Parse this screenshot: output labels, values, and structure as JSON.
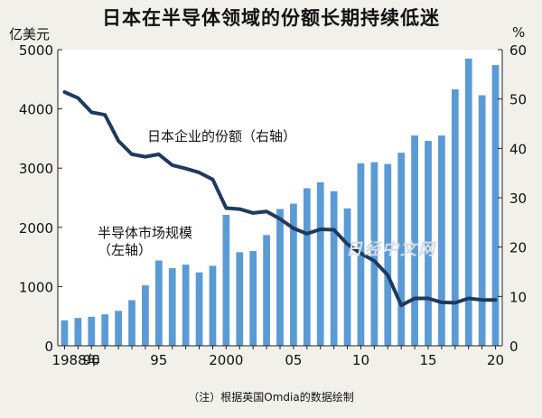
{
  "title": "日本在半导体领域的份额长期持续低迷",
  "left_unit": "亿美元",
  "right_unit": "%",
  "footnote": "（注）根据英国Omdia的数据绘制",
  "watermark": "日经中文网",
  "series_labels": {
    "share_line": "日本企业的份额（右轴）",
    "market_bars_line1": "半导体市场规模",
    "market_bars_line2": "（左轴）"
  },
  "colors": {
    "bar": "#5b9bd5",
    "line": "#1f3a5f",
    "axis": "#222222",
    "plot_background": "#ffffff"
  },
  "chart_data": {
    "type": "bar",
    "title": "日本在半导体领域的份额长期持续低迷",
    "x": [
      1988,
      1989,
      1990,
      1991,
      1992,
      1993,
      1994,
      1995,
      1996,
      1997,
      1998,
      1999,
      2000,
      2001,
      2002,
      2003,
      2004,
      2005,
      2006,
      2007,
      2008,
      2009,
      2010,
      2011,
      2012,
      2013,
      2014,
      2015,
      2016,
      2017,
      2018,
      2019,
      2020
    ],
    "x_tick_labels": [
      {
        "x": 1988,
        "label": "1988年"
      },
      {
        "x": 1990,
        "label": "90"
      },
      {
        "x": 1995,
        "label": "95"
      },
      {
        "x": 2000,
        "label": "2000"
      },
      {
        "x": 2005,
        "label": "05"
      },
      {
        "x": 2010,
        "label": "10"
      },
      {
        "x": 2015,
        "label": "15"
      },
      {
        "x": 2020,
        "label": "20"
      }
    ],
    "series": [
      {
        "name": "半导体市场规模（左轴）",
        "kind": "bar",
        "axis": "left",
        "values": [
          430,
          470,
          490,
          530,
          590,
          770,
          1020,
          1440,
          1310,
          1370,
          1240,
          1350,
          2210,
          1580,
          1600,
          1870,
          2310,
          2400,
          2660,
          2760,
          2610,
          2320,
          3080,
          3100,
          3070,
          3260,
          3550,
          3460,
          3550,
          4330,
          4850,
          4230,
          4740
        ]
      },
      {
        "name": "日本企业的份额（右轴）",
        "kind": "line",
        "axis": "right",
        "values": [
          51.4,
          50.2,
          47.3,
          46.8,
          41.5,
          38.8,
          38.3,
          38.8,
          36.6,
          35.9,
          35.1,
          33.7,
          27.9,
          27.7,
          26.9,
          27.2,
          25.7,
          23.8,
          22.7,
          23.6,
          23.5,
          20.6,
          18.7,
          17.2,
          14.3,
          8.2,
          9.6,
          9.6,
          8.8,
          8.7,
          9.6,
          9.3,
          9.3
        ]
      }
    ],
    "ylim_left": [
      0,
      5000
    ],
    "yticks_left": [
      0,
      1000,
      2000,
      3000,
      4000,
      5000
    ],
    "ylim_right": [
      0,
      60
    ],
    "yticks_right": [
      0,
      10,
      20,
      30,
      40,
      50,
      60
    ],
    "grid": false
  }
}
